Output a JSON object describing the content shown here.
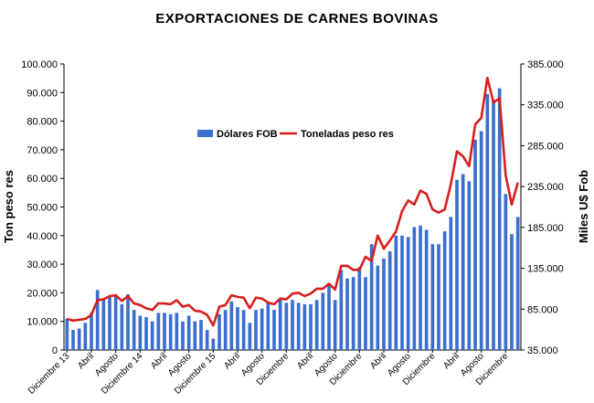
{
  "chart_data": {
    "type": "bar",
    "title": "EXPORTACIONES  DE  CARNES  BOVINAS",
    "ylabel_left": "Ton peso res",
    "ylabel_right": "Miles U$ Fob",
    "ylim_left": [
      0,
      100000
    ],
    "ylim_right": [
      35000,
      385000
    ],
    "yticks_left": [
      "0",
      "10.000",
      "20.000",
      "30.000",
      "40.000",
      "50.000",
      "60.000",
      "70.000",
      "80.000",
      "90.000",
      "100.000"
    ],
    "yticks_right": [
      "35.000",
      "85.000",
      "135.000",
      "185.000",
      "235.000",
      "285.000",
      "335.000",
      "385.000"
    ],
    "xtick_labels": [
      {
        "i": 0,
        "label": "Diciembre 13"
      },
      {
        "i": 4,
        "label": "Abril"
      },
      {
        "i": 8,
        "label": "Agosto"
      },
      {
        "i": 12,
        "label": "Diciembre 14"
      },
      {
        "i": 16,
        "label": "Abril"
      },
      {
        "i": 20,
        "label": "Agosto"
      },
      {
        "i": 24,
        "label": "Diciembre 15"
      },
      {
        "i": 28,
        "label": "Abril"
      },
      {
        "i": 32,
        "label": "Agosto"
      },
      {
        "i": 36,
        "label": "Diciembre"
      },
      {
        "i": 40,
        "label": "Abril"
      },
      {
        "i": 44,
        "label": "Agosto"
      },
      {
        "i": 48,
        "label": "Diciembre"
      },
      {
        "i": 52,
        "label": "Abril"
      },
      {
        "i": 56,
        "label": "Agosto"
      },
      {
        "i": 60,
        "label": "Diciembre"
      },
      {
        "i": 64,
        "label": "Abril"
      },
      {
        "i": 68,
        "label": "Agosto"
      },
      {
        "i": 72,
        "label": "Diciembre"
      }
    ],
    "legend": {
      "placement": "upper-left-center"
    },
    "series": [
      {
        "name": "Dólares FOB",
        "kind": "bar",
        "axis": "left",
        "color": "#3b6fcf",
        "values": [
          11000,
          7000,
          7500,
          9500,
          13000,
          21000,
          17500,
          18500,
          19000,
          16000,
          19500,
          14000,
          12000,
          11500,
          10000,
          13000,
          13000,
          12500,
          13000,
          10000,
          12000,
          10000,
          10500,
          7000,
          4000,
          12500,
          14000,
          17000,
          15000,
          14000,
          9500,
          14000,
          14500,
          16500,
          14000,
          18000,
          16500,
          17500,
          16500,
          16000,
          16000,
          17500,
          20000,
          22500,
          17500,
          28000,
          25000,
          25500,
          29000,
          25500,
          37000,
          29500,
          32000,
          34500,
          40000,
          40000,
          39500,
          43000,
          43500,
          42000,
          37000,
          37000,
          41500,
          46500,
          59500,
          61500,
          59000,
          73500,
          76500,
          89500,
          87500,
          91500,
          54500,
          40500,
          46500
        ]
      },
      {
        "name": "Toneladas peso res",
        "kind": "line",
        "axis": "right",
        "color": "#d81e1e",
        "values": [
          73000,
          71000,
          72000,
          73000,
          78000,
          96000,
          97000,
          101000,
          102000,
          95000,
          101000,
          92000,
          90000,
          86000,
          84000,
          92000,
          92000,
          91000,
          96000,
          88000,
          90000,
          83000,
          82000,
          78000,
          65000,
          88000,
          90000,
          102000,
          100000,
          99000,
          86000,
          99000,
          98000,
          93000,
          91000,
          98000,
          97000,
          104000,
          105000,
          101000,
          104000,
          110000,
          110000,
          116000,
          109000,
          138000,
          138000,
          133000,
          133000,
          149000,
          144000,
          175000,
          159000,
          169000,
          180000,
          205000,
          218000,
          213000,
          230000,
          226000,
          207000,
          203000,
          207000,
          238000,
          278000,
          272000,
          260000,
          311000,
          319000,
          368000,
          338000,
          343000,
          249000,
          213000,
          240000
        ]
      }
    ]
  }
}
